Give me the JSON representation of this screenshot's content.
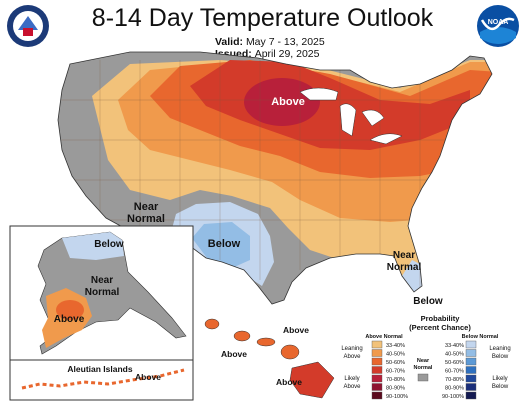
{
  "title": "8-14 Day Temperature Outlook",
  "valid_label": "Valid:",
  "valid_value": "May 7 - 13, 2025",
  "issued_label": "Issued:",
  "issued_value": "April 29, 2025",
  "noaa_logo_text": "NOAA",
  "map_labels": {
    "conus_above": "Above",
    "conus_near_normal_1": "Near",
    "conus_near_normal_2": "Normal",
    "conus_below": "Below",
    "se_near_normal_1": "Near",
    "se_near_normal_2": "Normal",
    "florida_below": "Below",
    "alaska_below": "Below",
    "alaska_near_1": "Near",
    "alaska_near_2": "Normal",
    "alaska_above": "Above",
    "aleutian_title": "Aleutian Islands",
    "aleutian_above": "Above",
    "hawaii_above_1": "Above",
    "hawaii_above_2": "Above",
    "hawaii_above_3": "Above"
  },
  "legend": {
    "title_1": "Probability",
    "title_2": "(Percent Chance)",
    "above_header": "Above Normal",
    "below_header": "Below Normal",
    "near_normal_1": "Near",
    "near_normal_2": "Normal",
    "leaning_above_1": "Leaning",
    "leaning_above_2": "Above",
    "likely_above_1": "Likely",
    "likely_above_2": "Above",
    "leaning_below_1": "Leaning",
    "leaning_below_2": "Below",
    "likely_below_1": "Likely",
    "likely_below_2": "Below",
    "above_bins": [
      {
        "label": "33-40%",
        "color": "#f2c27a"
      },
      {
        "label": "40-50%",
        "color": "#f09a4c"
      },
      {
        "label": "50-60%",
        "color": "#e8672e"
      },
      {
        "label": "60-70%",
        "color": "#d33b2a"
      },
      {
        "label": "70-80%",
        "color": "#b8203a"
      },
      {
        "label": "80-90%",
        "color": "#8e1330"
      },
      {
        "label": "90-100%",
        "color": "#5a0a1d"
      }
    ],
    "below_bins": [
      {
        "label": "33-40%",
        "color": "#c3d6ee"
      },
      {
        "label": "40-50%",
        "color": "#93bde5"
      },
      {
        "label": "50-60%",
        "color": "#5d9ad6"
      },
      {
        "label": "60-70%",
        "color": "#2f71c0"
      },
      {
        "label": "70-80%",
        "color": "#20489c"
      },
      {
        "label": "80-90%",
        "color": "#1b2f7a"
      },
      {
        "label": "90-100%",
        "color": "#141a52"
      }
    ],
    "near_color": "#9a9a9a"
  }
}
